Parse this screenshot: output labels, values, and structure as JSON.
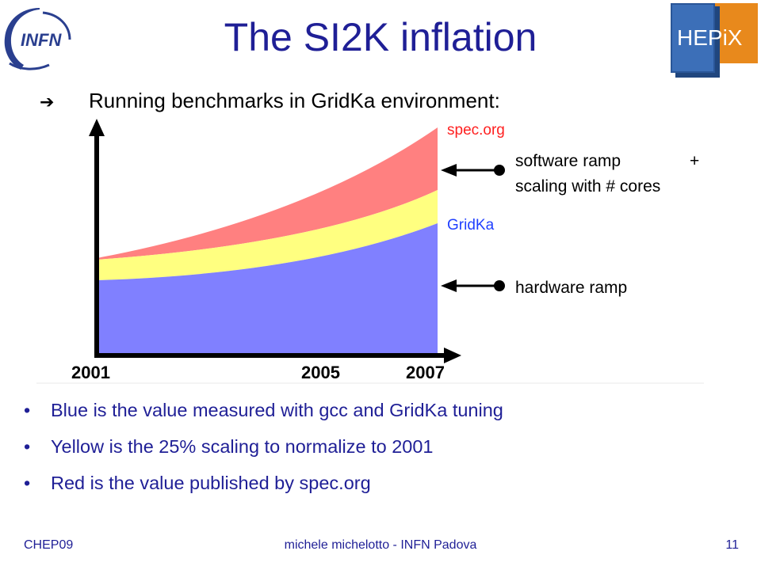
{
  "slide": {
    "title": "The SI2K inflation",
    "bullets": [
      "Blue is the value measured with gcc and GridKa tuning",
      "Yellow is the 25% scaling to normalize to 2001",
      "Red is the value published by spec.org"
    ],
    "footer": {
      "left": "CHEP09",
      "center": "michele michelotto - INFN Padova",
      "right": "11"
    }
  },
  "logos": {
    "infn": "INFN",
    "hepix": "HEPiX"
  },
  "chart_data": {
    "type": "area",
    "heading_bullet": "➔",
    "heading": "Running benchmarks in GridKa environment:",
    "x_ticks": [
      "2001",
      "2005",
      "2007"
    ],
    "x": [
      2001,
      2007
    ],
    "stacked": true,
    "grid": false,
    "colors": {
      "blue": "#8080ff",
      "yellow": "#ffff80",
      "red": "#ff8080",
      "red_label": "#ff2020",
      "blue_label": "#2040ff"
    },
    "series_labels": {
      "top": "spec.org",
      "bottom": "GridKa"
    },
    "annotations": [
      {
        "line1": "software ramp",
        "plus": "+",
        "line2": "scaling with # cores"
      },
      {
        "line1": "hardware ramp"
      }
    ]
  }
}
